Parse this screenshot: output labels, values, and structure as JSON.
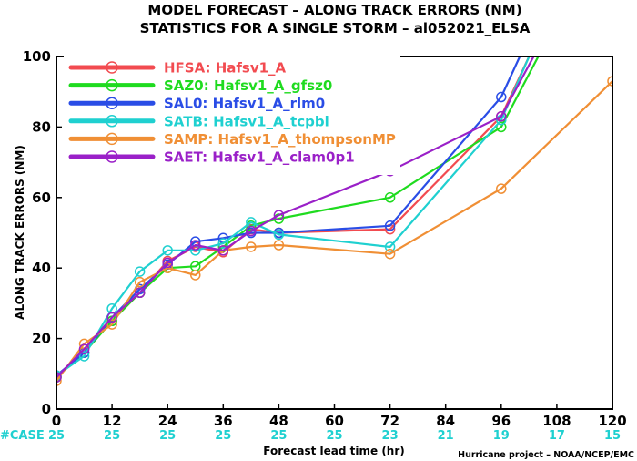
{
  "chart_data": {
    "type": "line",
    "title": "MODEL FORECAST – ALONG TRACK ERRORS (NM)",
    "subtitle": "STATISTICS FOR A SINGLE STORM – al052021_ELSA",
    "xlabel": "Forecast lead time (hr)",
    "ylabel": "ALONG TRACK ERRORS (NM)",
    "xlim": [
      0,
      120
    ],
    "ylim": [
      0,
      100
    ],
    "xticks": [
      "0",
      "12",
      "24",
      "36",
      "48",
      "60",
      "72",
      "84",
      "96",
      "108",
      "120"
    ],
    "yticks": [
      "0",
      "20",
      "40",
      "60",
      "80",
      "100"
    ],
    "grid": false,
    "legend_position": "top-left",
    "case_label": "#CASE",
    "case_counts": [
      "25",
      "25",
      "25",
      "25",
      "25",
      "25",
      "23",
      "21",
      "19",
      "17",
      "15"
    ],
    "credit": "Hurricane project – NOAA/NCEP/EMC",
    "series": [
      {
        "name": "HFSA:  Hafsv1_A",
        "color": "#f24b50",
        "x": [
          0,
          6,
          12,
          18,
          24,
          30,
          36,
          42,
          48,
          72,
          96,
          102
        ],
        "y": [
          9,
          17,
          25,
          33,
          42,
          46,
          44.5,
          51,
          50,
          51,
          83,
          100
        ]
      },
      {
        "name": "SAZ0:  Hafsv1_A_gfsz0",
        "color": "#1fdb1f",
        "x": [
          0,
          6,
          12,
          18,
          24,
          30,
          36,
          42,
          48,
          72,
          96,
          104
        ],
        "y": [
          9,
          16,
          25,
          33,
          40,
          40.5,
          46,
          52,
          54,
          60,
          80,
          100
        ]
      },
      {
        "name": "SAL0:  Hafsv1_A_rlm0",
        "color": "#2a4de6",
        "x": [
          0,
          6,
          12,
          18,
          24,
          30,
          36,
          42,
          48,
          72,
          96,
          100
        ],
        "y": [
          9.5,
          16,
          26,
          34,
          41,
          47.5,
          48.5,
          50,
          50,
          52,
          88.5,
          100
        ]
      },
      {
        "name": "SATB:  Hafsv1_A_tcpbl",
        "color": "#1fd0d0",
        "x": [
          0,
          6,
          12,
          18,
          24,
          30,
          36,
          42,
          48,
          72,
          96,
          102
        ],
        "y": [
          9.5,
          15,
          28.5,
          39,
          45,
          45,
          47,
          53,
          49.5,
          46,
          82,
          100
        ]
      },
      {
        "name": "SAMP:  Hafsv1_A_thompsonMP",
        "color": "#f08f35",
        "x": [
          0,
          6,
          12,
          18,
          24,
          30,
          36,
          42,
          48,
          72,
          96,
          120
        ],
        "y": [
          8,
          18.5,
          24,
          36,
          40,
          38,
          45,
          46,
          46.5,
          44,
          62.5,
          93
        ]
      },
      {
        "name": "SAET:  Hafsv1_A_clam0p1",
        "color": "#9a20c8",
        "x": [
          0,
          6,
          12,
          18,
          24,
          30,
          36,
          42,
          48,
          72,
          96,
          103
        ],
        "y": [
          9,
          17,
          26,
          33,
          41.5,
          46.5,
          45,
          50.5,
          55,
          67.5,
          83,
          100
        ]
      }
    ]
  }
}
